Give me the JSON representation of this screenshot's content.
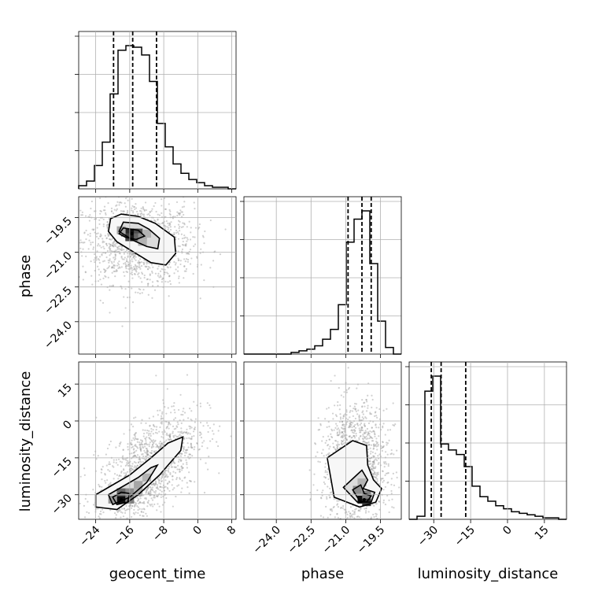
{
  "chart_data": {
    "type": "corner",
    "parameters": [
      "geocent_time",
      "phase",
      "luminosity_distance"
    ],
    "ranges": {
      "geocent_time": [
        -28,
        9
      ],
      "phase": [
        -25.4,
        -18.6
      ],
      "luminosity_distance": [
        -40,
        24
      ]
    },
    "ticks": {
      "geocent_time": [
        "−24",
        "−16",
        "−8",
        "0",
        "8"
      ],
      "phase": [
        "−24.0",
        "−22.5",
        "−21.0",
        "−19.5"
      ],
      "luminosity_distance": [
        "−30",
        "−15",
        "0",
        "15"
      ]
    },
    "tick_values": {
      "geocent_time": [
        -24,
        -16,
        -8,
        0,
        8
      ],
      "phase": [
        -24.0,
        -22.5,
        -21.0,
        -19.5
      ],
      "luminosity_distance": [
        -30,
        -15,
        0,
        15
      ]
    },
    "quantiles": {
      "geocent_time": [
        -19.8,
        -15.3,
        -9.7
      ],
      "phase": [
        -20.9,
        -20.3,
        -19.9
      ],
      "luminosity_distance": [
        -31,
        -27,
        -17
      ]
    },
    "histograms": {
      "geocent_time": {
        "edges": [
          -28,
          -26.15,
          -24.3,
          -22.45,
          -20.6,
          -18.75,
          -16.9,
          -15.05,
          -13.2,
          -11.35,
          -9.5,
          -7.65,
          -5.8,
          -3.95,
          -2.1,
          -0.25,
          1.6,
          3.45,
          5.3,
          7.15,
          9
        ],
        "counts": [
          2,
          5,
          15,
          30,
          61,
          89,
          92,
          91,
          86,
          69,
          42,
          27,
          16,
          10,
          6,
          4,
          2,
          1,
          1,
          0
        ]
      },
      "phase": {
        "edges": [
          -25.4,
          -25.06,
          -24.72,
          -24.38,
          -24.04,
          -23.7,
          -23.36,
          -23.02,
          -22.68,
          -22.34,
          -22.0,
          -21.66,
          -21.32,
          -20.98,
          -20.64,
          -20.3,
          -19.96,
          -19.62,
          -19.28,
          -18.94,
          -18.6
        ],
        "counts": [
          0,
          0,
          0,
          0,
          0,
          0,
          1,
          2,
          3,
          5,
          9,
          15,
          30,
          68,
          82,
          87,
          55,
          20,
          4,
          0
        ]
      },
      "luminosity_distance": {
        "edges": [
          -40,
          -36.8,
          -33.6,
          -30.4,
          -27.2,
          -24,
          -20.8,
          -17.6,
          -14.4,
          -11.2,
          -8,
          -4.8,
          -1.6,
          1.6,
          4.8,
          8,
          11.2,
          14.4,
          17.6,
          20.8,
          24
        ],
        "counts": [
          0,
          2,
          85,
          95,
          50,
          46,
          43,
          35,
          22,
          15,
          12,
          9,
          7,
          5,
          4,
          3,
          2,
          1,
          1,
          0
        ]
      }
    },
    "density2d": [
      {
        "x": "geocent_time",
        "y": "phase",
        "mode": [
          -15.5,
          -20.2
        ],
        "levels": [
          [
            [
              -21,
              -20.1
            ],
            [
              -20.5,
              -19.55
            ],
            [
              -18,
              -19.35
            ],
            [
              -14,
              -19.45
            ],
            [
              -10,
              -19.75
            ],
            [
              -5.5,
              -20.35
            ],
            [
              -5.2,
              -21.05
            ],
            [
              -7.5,
              -21.55
            ],
            [
              -11,
              -21.45
            ],
            [
              -15,
              -21.0
            ],
            [
              -19,
              -20.55
            ]
          ],
          [
            [
              -18.5,
              -20.1
            ],
            [
              -17.5,
              -19.7
            ],
            [
              -14,
              -19.75
            ],
            [
              -11.5,
              -20.0
            ],
            [
              -9,
              -20.4
            ],
            [
              -9.4,
              -20.85
            ],
            [
              -12,
              -20.75
            ],
            [
              -15,
              -20.5
            ]
          ],
          [
            [
              -18.5,
              -20.2
            ],
            [
              -17.5,
              -19.95
            ],
            [
              -14,
              -20.05
            ],
            [
              -12.5,
              -20.3
            ],
            [
              -14.5,
              -20.45
            ],
            [
              -17,
              -20.35
            ]
          ]
        ],
        "cells": [
          [
            -17,
            -20.15,
            0.55
          ],
          [
            -16,
            -20.15,
            0.85
          ],
          [
            -15,
            -20.15,
            0.95
          ],
          [
            -14,
            -20.15,
            0.7
          ],
          [
            -16,
            -20.35,
            0.75
          ],
          [
            -15,
            -20.35,
            0.9
          ],
          [
            -14,
            -20.35,
            0.6
          ],
          [
            -13,
            -20.35,
            0.45
          ],
          [
            -12,
            -20.2,
            0.3
          ],
          [
            -13,
            -20.55,
            0.3
          ],
          [
            -18,
            -20.05,
            0.35
          ]
        ],
        "scatter_center": [
          -14,
          -20.6
        ],
        "scatter_spread": [
          6.5,
          0.9
        ],
        "scatter_tilt": -0.1
      },
      {
        "x": "geocent_time",
        "y": "luminosity_distance",
        "mode": [
          -18,
          -32
        ],
        "levels": [
          [
            [
              -24,
              -30
            ],
            [
              -21,
              -27
            ],
            [
              -16,
              -22
            ],
            [
              -11,
              -15
            ],
            [
              -7,
              -9
            ],
            [
              -3.5,
              -6.5
            ],
            [
              -4,
              -12
            ],
            [
              -9,
              -22
            ],
            [
              -14,
              -30
            ],
            [
              -19,
              -36
            ],
            [
              -24,
              -35
            ]
          ],
          [
            [
              -21,
              -30
            ],
            [
              -18,
              -27
            ],
            [
              -14,
              -23
            ],
            [
              -11,
              -19
            ],
            [
              -9.5,
              -18
            ],
            [
              -12,
              -25
            ],
            [
              -16,
              -31
            ],
            [
              -20,
              -34
            ]
          ],
          [
            [
              -20,
              -31
            ],
            [
              -18,
              -29
            ],
            [
              -16,
              -29.5
            ],
            [
              -16.5,
              -33
            ],
            [
              -19,
              -34
            ]
          ]
        ],
        "cells": [
          [
            -18,
            -32,
            0.95
          ],
          [
            -18,
            -29,
            0.6
          ],
          [
            -16,
            -29,
            0.45
          ],
          [
            -16,
            -32,
            0.5
          ],
          [
            -14,
            -26,
            0.35
          ],
          [
            -12,
            -23,
            0.3
          ],
          [
            -20,
            -32,
            0.4
          ],
          [
            -14,
            -29,
            0.3
          ]
        ],
        "scatter_center": [
          -12,
          -20
        ],
        "scatter_spread": [
          6.0,
          10.0
        ],
        "scatter_tilt": 1.6
      },
      {
        "x": "phase",
        "y": "luminosity_distance",
        "mode": [
          -20.2,
          -32
        ],
        "levels": [
          [
            [
              -21.8,
              -15
            ],
            [
              -20.7,
              -8
            ],
            [
              -20.1,
              -10
            ],
            [
              -20.05,
              -18
            ],
            [
              -19.8,
              -24
            ],
            [
              -19.45,
              -27.5
            ],
            [
              -19.7,
              -33
            ],
            [
              -20.4,
              -35
            ],
            [
              -21.5,
              -31
            ]
          ],
          [
            [
              -21.1,
              -27
            ],
            [
              -20.3,
              -20
            ],
            [
              -20.05,
              -24
            ],
            [
              -20.25,
              -27.5
            ],
            [
              -19.75,
              -29
            ],
            [
              -19.9,
              -33
            ],
            [
              -20.5,
              -33
            ]
          ],
          [
            [
              -20.7,
              -28
            ],
            [
              -20.35,
              -26
            ],
            [
              -20.2,
              -29.5
            ],
            [
              -19.9,
              -30.5
            ],
            [
              -20.1,
              -33
            ],
            [
              -20.4,
              -32.5
            ]
          ]
        ],
        "cells": [
          [
            -20.3,
            -32,
            0.95
          ],
          [
            -20.1,
            -33,
            0.8
          ],
          [
            -20.5,
            -28,
            0.45
          ],
          [
            -20.3,
            -25,
            0.3
          ],
          [
            -20.1,
            -30,
            0.5
          ]
        ],
        "scatter_center": [
          -20.6,
          -18
        ],
        "scatter_spread": [
          0.7,
          12.0
        ],
        "scatter_tilt": 0.0
      }
    ]
  }
}
